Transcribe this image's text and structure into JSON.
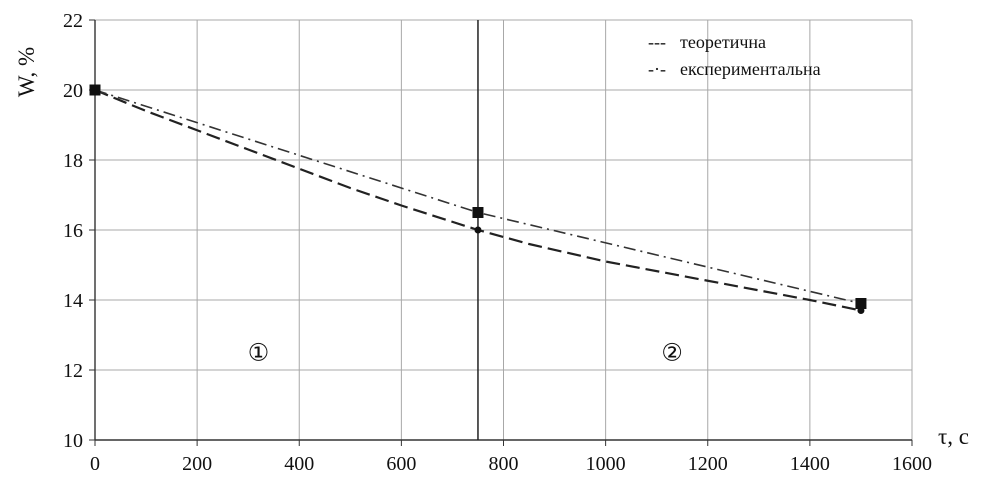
{
  "chart_data": {
    "type": "line",
    "title": "",
    "xlabel": "τ, с",
    "ylabel": "W, %",
    "xlim": [
      0,
      1600
    ],
    "ylim": [
      10,
      22
    ],
    "xticks": [
      0,
      200,
      400,
      600,
      800,
      1000,
      1200,
      1400,
      1600
    ],
    "yticks": [
      10,
      12,
      14,
      16,
      18,
      20,
      22
    ],
    "xtick_labels": [
      "0",
      "200",
      "400",
      "600",
      "800",
      "1000",
      "1200",
      "1400",
      "1600"
    ],
    "ytick_labels": [
      "10",
      "12",
      "14",
      "16",
      "18",
      "20",
      "22"
    ],
    "grid": true,
    "legend_position": "top-right",
    "series": [
      {
        "name": "теоретична",
        "legend_marker": "---",
        "line_style": "dashed",
        "x": [
          0,
          100,
          200,
          300,
          400,
          500,
          600,
          750,
          850,
          1000,
          1200,
          1400,
          1500
        ],
        "y": [
          20.0,
          19.4,
          18.85,
          18.3,
          17.75,
          17.2,
          16.7,
          16.0,
          15.6,
          15.1,
          14.55,
          14.0,
          13.7
        ],
        "markers_at": [
          750,
          1500
        ],
        "marker": "dot"
      },
      {
        "name": "експериментальна",
        "legend_marker": "-·-",
        "line_style": "dashdot",
        "x": [
          0,
          750,
          1500
        ],
        "y": [
          20.0,
          16.5,
          13.9
        ],
        "markers_at": [
          0,
          750,
          1500
        ],
        "marker": "square"
      }
    ],
    "vertical_line": {
      "x": 750
    },
    "annotations": [
      {
        "text": "①",
        "x": 320,
        "y": 12.5
      },
      {
        "text": "②",
        "x": 1130,
        "y": 12.5
      }
    ]
  }
}
